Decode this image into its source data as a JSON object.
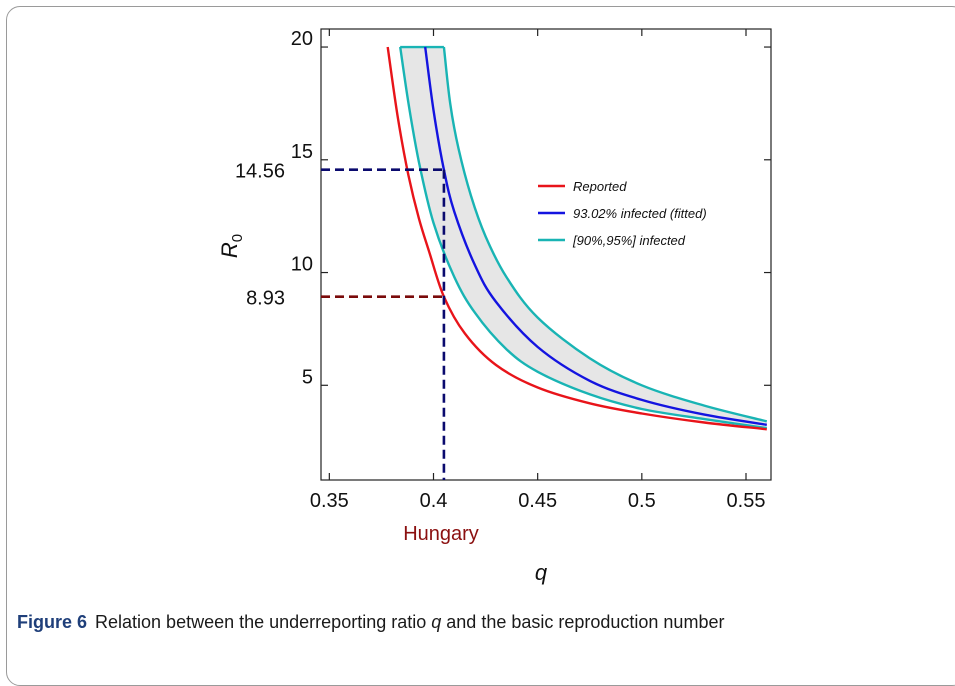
{
  "figure": {
    "caption_label": "Figure 6",
    "caption_pre": "Relation between the underreporting ratio",
    "caption_var": "q",
    "caption_post": "and the basic reproduction number"
  },
  "chart_data": {
    "type": "line",
    "xlabel": "q",
    "ylabel": "R",
    "ylabel_sub": "0",
    "xlim": [
      0.346,
      0.562
    ],
    "ylim": [
      0.8,
      20.8
    ],
    "xticks": [
      0.35,
      0.4,
      0.45,
      0.5,
      0.55
    ],
    "xtick_labels": [
      "0.35",
      "0.4",
      "0.45",
      "0.5",
      "0.55"
    ],
    "yticks": [
      5,
      10,
      15,
      20
    ],
    "ytick_labels": [
      "5",
      "10",
      "15",
      "20"
    ],
    "grid": false,
    "legend_position": "right",
    "series": [
      {
        "name": "Reported",
        "color": "#e8141a",
        "x": [
          0.378,
          0.383,
          0.388,
          0.393,
          0.398,
          0.405,
          0.415,
          0.43,
          0.45,
          0.475,
          0.5,
          0.53,
          0.56
        ],
        "y": [
          20,
          16.8,
          14.3,
          12.4,
          10.9,
          8.93,
          7.3,
          5.9,
          4.9,
          4.2,
          3.75,
          3.35,
          3.05
        ]
      },
      {
        "name": "93.02% infected (fitted)",
        "color": "#1414e0",
        "x": [
          0.396,
          0.4,
          0.405,
          0.41,
          0.42,
          0.43,
          0.45,
          0.475,
          0.5,
          0.53,
          0.56
        ],
        "y": [
          20,
          17.2,
          14.56,
          12.7,
          10.3,
          8.7,
          6.7,
          5.2,
          4.35,
          3.7,
          3.25
        ]
      },
      {
        "name": "[90%,95%] infected",
        "color": "#19b4b4",
        "lower_x": [
          0.384,
          0.388,
          0.393,
          0.4,
          0.41,
          0.42,
          0.435,
          0.45,
          0.475,
          0.5,
          0.53,
          0.56
        ],
        "lower_y": [
          20,
          17.5,
          14.9,
          12.2,
          9.8,
          8.2,
          6.6,
          5.6,
          4.6,
          3.95,
          3.5,
          3.1
        ],
        "upper_x": [
          0.405,
          0.408,
          0.412,
          0.418,
          0.425,
          0.435,
          0.45,
          0.475,
          0.5,
          0.53,
          0.56
        ],
        "upper_y": [
          20,
          17.5,
          15.5,
          13.4,
          11.6,
          9.8,
          8.0,
          6.2,
          5.0,
          4.1,
          3.4
        ]
      }
    ],
    "reference_lines": [
      {
        "label": "14.56",
        "y": 14.56,
        "x": 0.405,
        "color": "#0a0a6e"
      },
      {
        "label": "8.93",
        "y": 8.93,
        "x": 0.405,
        "color": "#7a0a0a"
      }
    ],
    "country_marker": {
      "label": "Hungary",
      "x": 0.405,
      "color": "#8b1010"
    }
  }
}
